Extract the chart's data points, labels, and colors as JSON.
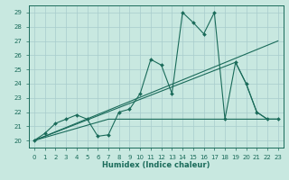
{
  "xlabel": "Humidex (Indice chaleur)",
  "xlim": [
    -0.5,
    23.5
  ],
  "ylim": [
    19.5,
    29.5
  ],
  "xticks": [
    0,
    1,
    2,
    3,
    4,
    5,
    6,
    7,
    8,
    9,
    10,
    11,
    12,
    13,
    14,
    15,
    16,
    17,
    18,
    19,
    20,
    21,
    22,
    23
  ],
  "yticks": [
    20,
    21,
    22,
    23,
    24,
    25,
    26,
    27,
    28,
    29
  ],
  "background_color": "#c8e8e0",
  "grid_color": "#a8cccc",
  "line_color": "#1a6b5a",
  "lines": [
    {
      "x": [
        0,
        1,
        2,
        3,
        4,
        5,
        6,
        7,
        8,
        9,
        10,
        11,
        12,
        13,
        14,
        15,
        16,
        17,
        18,
        19,
        20,
        21,
        22,
        23
      ],
      "y": [
        20.0,
        20.5,
        21.2,
        21.5,
        21.8,
        21.5,
        20.3,
        20.4,
        22.0,
        22.2,
        23.3,
        25.7,
        25.3,
        23.3,
        29.0,
        28.3,
        27.5,
        29.0,
        21.5,
        25.5,
        24.0,
        22.0,
        21.5,
        21.5
      ],
      "marker": "D",
      "markersize": 2.0,
      "linewidth": 0.8
    },
    {
      "x": [
        0,
        19,
        20,
        21,
        22,
        23
      ],
      "y": [
        20.0,
        25.5,
        24.0,
        22.0,
        21.5,
        21.5
      ],
      "marker": null,
      "linewidth": 0.8
    },
    {
      "x": [
        0,
        23
      ],
      "y": [
        20.0,
        27.0
      ],
      "marker": null,
      "linewidth": 0.8
    },
    {
      "x": [
        0,
        7,
        8,
        9,
        10,
        11,
        12,
        13,
        14,
        15,
        16,
        17,
        18,
        19,
        20,
        21,
        22,
        23
      ],
      "y": [
        20.0,
        21.5,
        21.5,
        21.5,
        21.5,
        21.5,
        21.5,
        21.5,
        21.5,
        21.5,
        21.5,
        21.5,
        21.5,
        21.5,
        21.5,
        21.5,
        21.5,
        21.5
      ],
      "marker": null,
      "linewidth": 0.8
    }
  ]
}
